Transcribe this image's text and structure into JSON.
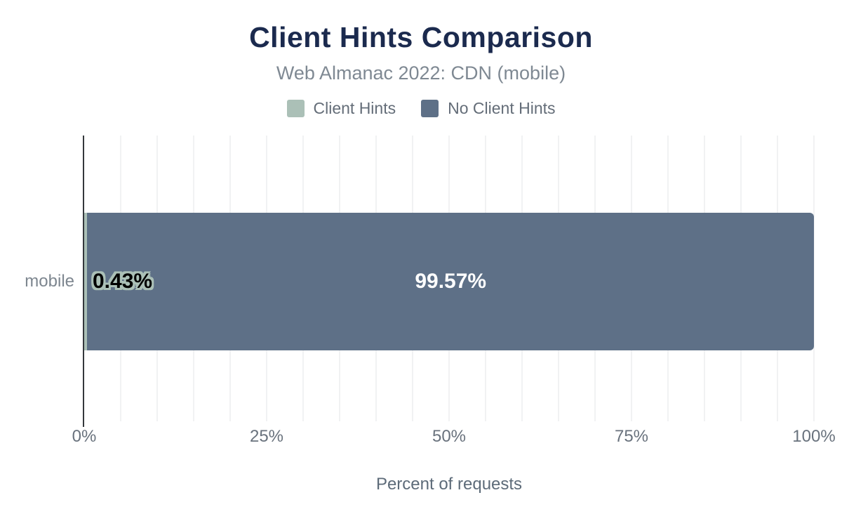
{
  "header": {
    "title": "Client Hints Comparison",
    "subtitle": "Web Almanac 2022: CDN (mobile)"
  },
  "legend": {
    "position": "top",
    "items": [
      {
        "label": "Client Hints",
        "color": "#abc0b7"
      },
      {
        "label": "No Client Hints",
        "color": "#5e7087"
      }
    ]
  },
  "chart_data": {
    "type": "bar",
    "orientation": "horizontal-stacked",
    "title": "Client Hints Comparison",
    "subtitle": "Web Almanac 2022: CDN (mobile)",
    "categories": [
      "mobile"
    ],
    "series": [
      {
        "name": "Client Hints",
        "color": "#abc0b7",
        "values": [
          0.43
        ],
        "labels": [
          "0.43%"
        ]
      },
      {
        "name": "No Client Hints",
        "color": "#5e7087",
        "values": [
          99.57
        ],
        "labels": [
          "99.57%"
        ]
      }
    ],
    "xlabel": "Percent of requests",
    "ylabel": "",
    "xlim": [
      0,
      100
    ],
    "grid": true,
    "grid_step": 5,
    "x_ticks": [
      {
        "label": "0%",
        "value": 0
      },
      {
        "label": "25%",
        "value": 25
      },
      {
        "label": "50%",
        "value": 50
      },
      {
        "label": "75%",
        "value": 75
      },
      {
        "label": "100%",
        "value": 100
      }
    ]
  },
  "colors": {
    "title_navy": "#1b2a4e",
    "subtitle_gray": "#7f8993",
    "axis_line": "#34383c",
    "gridline": "#f1f2f3",
    "tick_text": "#69727d"
  }
}
